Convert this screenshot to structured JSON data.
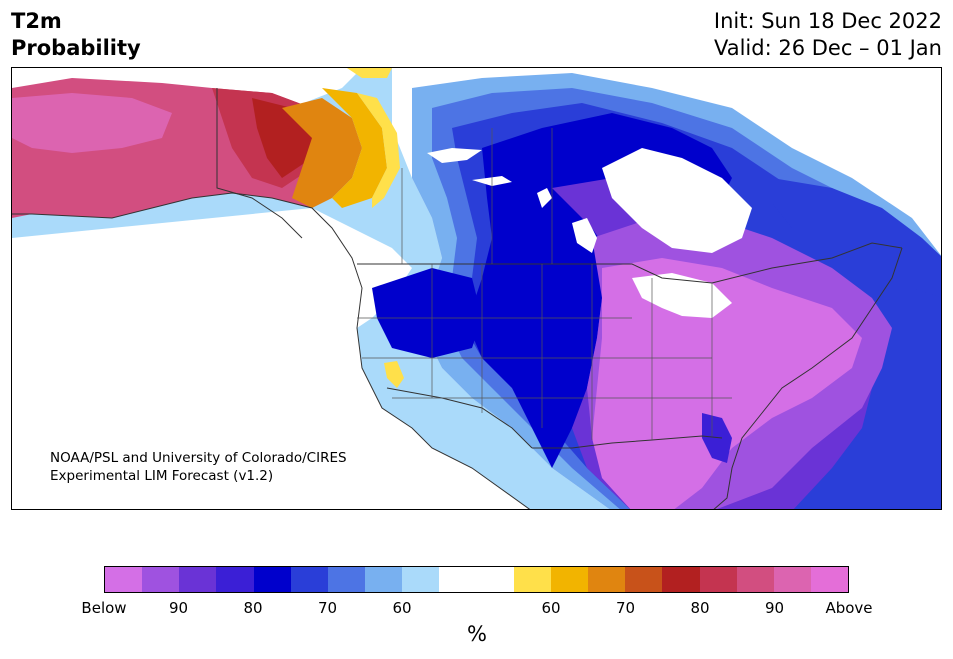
{
  "title": {
    "left_line1": "T2m",
    "left_line2": "Probability",
    "right_line1": "Init: Sun 18 Dec 2022",
    "right_line2": "Valid: 26 Dec – 01 Jan"
  },
  "credit": {
    "line1": "NOAA/PSL and University of Colorado/CIRES",
    "line2": "Experimental LIM Forecast (v1.2)"
  },
  "colorbar": {
    "colors": [
      "#d46fe6",
      "#9f52e0",
      "#6a33d6",
      "#3b1fd6",
      "#0000cc",
      "#2a3ed8",
      "#4d74e4",
      "#78b0f0",
      "#aadafa",
      "#ffffff",
      "#ffffff",
      "#ffe04a",
      "#f2b400",
      "#e08510",
      "#c8521a",
      "#b22020",
      "#c43450",
      "#d24e80",
      "#dc64b0",
      "#e46ed8"
    ],
    "tick_labels": [
      "Below",
      "90",
      "80",
      "70",
      "60",
      "60",
      "70",
      "80",
      "90",
      "Above"
    ],
    "unit": "%"
  }
}
